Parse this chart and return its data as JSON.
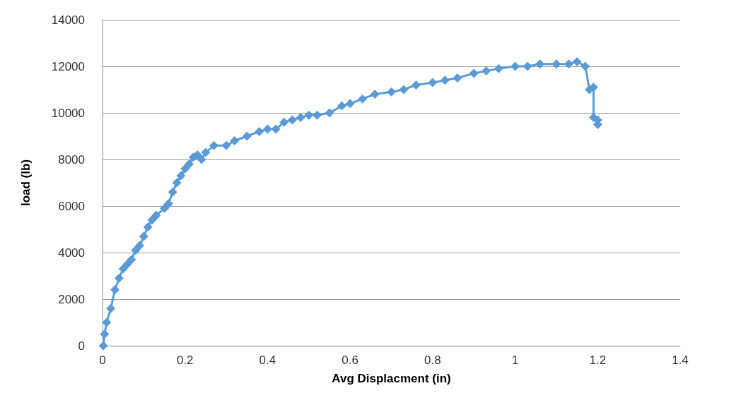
{
  "chart_data": {
    "type": "line",
    "xlabel": "Avg Displacment (in)",
    "ylabel": "load (lb)",
    "marker": "diamond",
    "line_style": "solid",
    "grid": "y",
    "xlim": [
      0,
      1.4
    ],
    "xticks": [
      0,
      0.2,
      0.4,
      0.6,
      0.8,
      1,
      1.2,
      1.4
    ],
    "ylim": [
      0,
      14000
    ],
    "yticks": [
      0,
      2000,
      4000,
      6000,
      8000,
      10000,
      12000,
      14000
    ],
    "series": [
      {
        "color": "#5b9bd5",
        "x": [
          0.002,
          0.005,
          0.01,
          0.02,
          0.03,
          0.04,
          0.05,
          0.06,
          0.07,
          0.08,
          0.09,
          0.1,
          0.11,
          0.12,
          0.13,
          0.15,
          0.16,
          0.17,
          0.18,
          0.19,
          0.2,
          0.21,
          0.22,
          0.23,
          0.24,
          0.25,
          0.27,
          0.3,
          0.32,
          0.35,
          0.38,
          0.4,
          0.42,
          0.44,
          0.46,
          0.48,
          0.5,
          0.52,
          0.55,
          0.58,
          0.6,
          0.63,
          0.66,
          0.7,
          0.73,
          0.76,
          0.8,
          0.83,
          0.86,
          0.9,
          0.93,
          0.96,
          1,
          1.03,
          1.06,
          1.1,
          1.13,
          1.15,
          1.17,
          1.18,
          1.19,
          1.19,
          1.2,
          1.2
        ],
        "values": [
          0,
          500,
          1000,
          1600,
          2400,
          2900,
          3300,
          3500,
          3700,
          4100,
          4300,
          4700,
          5100,
          5400,
          5600,
          5900,
          6100,
          6600,
          7000,
          7300,
          7600,
          7800,
          8100,
          8200,
          8000,
          8300,
          8600,
          8600,
          8800,
          9000,
          9200,
          9300,
          9300,
          9600,
          9700,
          9800,
          9900,
          9900,
          10000,
          10300,
          10400,
          10600,
          10800,
          10900,
          11000,
          11200,
          11300,
          11400,
          11500,
          11700,
          11800,
          11900,
          12000,
          12000,
          12100,
          12100,
          12100,
          12200,
          12000,
          11000,
          11100,
          9800,
          9500,
          9700
        ]
      }
    ]
  }
}
